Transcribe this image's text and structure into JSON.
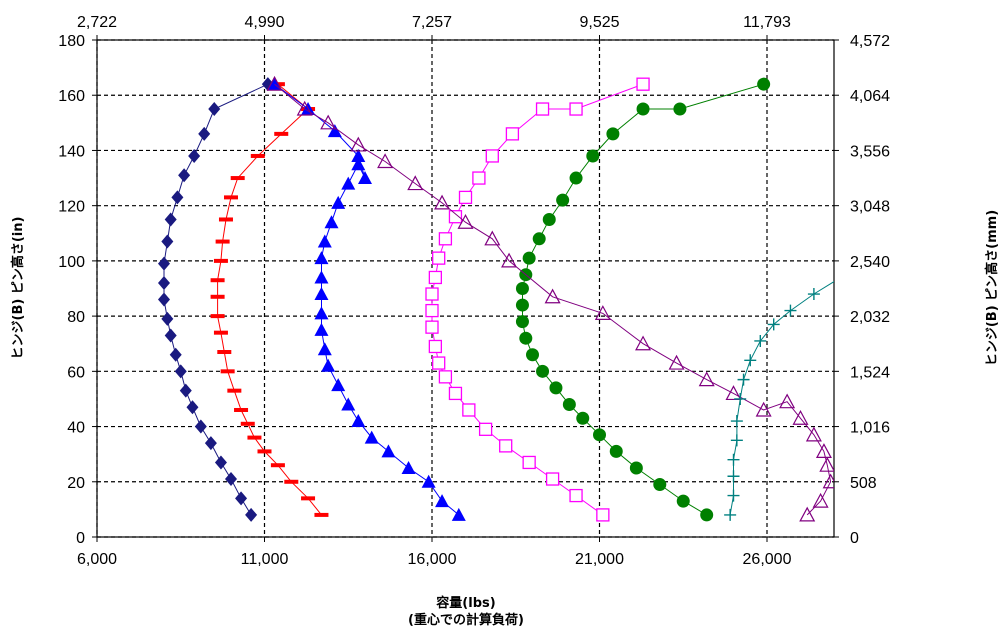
{
  "chart_data": {
    "type": "line",
    "title": "",
    "xlabel": "容量(lbs)",
    "xlabel_sub": "(重心での計算負荷)",
    "ylabel": "ヒンジ(B) ピン高さ(in)",
    "ylabel_right": "ヒンジ(B) ピン高さ(mm)",
    "xlim": [
      6000,
      28000
    ],
    "ylim": [
      0,
      180
    ],
    "grid": true,
    "x_ticks_bottom": [
      "6,000",
      "11,000",
      "16,000",
      "21,000",
      "26,000"
    ],
    "x_ticks_top": [
      "2,722",
      "4,990",
      "7,257",
      "9,525",
      "11,793"
    ],
    "y_ticks_left": [
      "0",
      "20",
      "40",
      "60",
      "80",
      "100",
      "120",
      "140",
      "160",
      "180"
    ],
    "y_ticks_right": [
      "0",
      "508",
      "1,016",
      "1,524",
      "2,032",
      "2,540",
      "3,048",
      "3,556",
      "4,064",
      "4,572"
    ],
    "series": [
      {
        "marker": "diamond",
        "color": "#1a1a80",
        "points": [
          [
            10600,
            8
          ],
          [
            10300,
            14
          ],
          [
            10000,
            21
          ],
          [
            9700,
            27
          ],
          [
            9400,
            34
          ],
          [
            9100,
            40
          ],
          [
            8850,
            47
          ],
          [
            8650,
            53
          ],
          [
            8500,
            60
          ],
          [
            8350,
            66
          ],
          [
            8200,
            73
          ],
          [
            8100,
            79
          ],
          [
            8000,
            86
          ],
          [
            8000,
            92
          ],
          [
            8000,
            99
          ],
          [
            8100,
            107
          ],
          [
            8200,
            115
          ],
          [
            8400,
            123
          ],
          [
            8600,
            131
          ],
          [
            8900,
            138
          ],
          [
            9200,
            146
          ],
          [
            9500,
            155
          ],
          [
            11100,
            164
          ]
        ]
      },
      {
        "marker": "dash",
        "color": "#ff0000",
        "points": [
          [
            12700,
            8
          ],
          [
            12300,
            14
          ],
          [
            11800,
            20
          ],
          [
            11400,
            26
          ],
          [
            11000,
            31
          ],
          [
            10700,
            36
          ],
          [
            10500,
            41
          ],
          [
            10300,
            46
          ],
          [
            10100,
            53
          ],
          [
            9900,
            60
          ],
          [
            9800,
            67
          ],
          [
            9700,
            74
          ],
          [
            9600,
            80
          ],
          [
            9600,
            87
          ],
          [
            9600,
            93
          ],
          [
            9700,
            100
          ],
          [
            9750,
            107
          ],
          [
            9850,
            115
          ],
          [
            10000,
            123
          ],
          [
            10200,
            130
          ],
          [
            10800,
            138
          ],
          [
            11500,
            146
          ],
          [
            12300,
            155
          ],
          [
            11400,
            164
          ]
        ]
      },
      {
        "marker": "triangle",
        "color": "#0000ff",
        "points": [
          [
            16800,
            8
          ],
          [
            16300,
            13
          ],
          [
            15900,
            20
          ],
          [
            15300,
            25
          ],
          [
            14700,
            31
          ],
          [
            14200,
            36
          ],
          [
            13800,
            42
          ],
          [
            13500,
            48
          ],
          [
            13200,
            55
          ],
          [
            12900,
            62
          ],
          [
            12800,
            68
          ],
          [
            12700,
            75
          ],
          [
            12700,
            81
          ],
          [
            12700,
            88
          ],
          [
            12700,
            94
          ],
          [
            12700,
            101
          ],
          [
            12800,
            107
          ],
          [
            13000,
            114
          ],
          [
            13200,
            121
          ],
          [
            13500,
            128
          ],
          [
            13800,
            135
          ],
          [
            14000,
            130
          ],
          [
            13800,
            138
          ],
          [
            13100,
            147
          ],
          [
            12300,
            155
          ],
          [
            11300,
            164
          ]
        ]
      },
      {
        "marker": "open-square",
        "color": "#ff00ff",
        "points": [
          [
            21100,
            8
          ],
          [
            20300,
            15
          ],
          [
            19600,
            21
          ],
          [
            18900,
            27
          ],
          [
            18200,
            33
          ],
          [
            17600,
            39
          ],
          [
            17100,
            46
          ],
          [
            16700,
            52
          ],
          [
            16400,
            58
          ],
          [
            16200,
            63
          ],
          [
            16100,
            69
          ],
          [
            16000,
            76
          ],
          [
            16000,
            82
          ],
          [
            16000,
            88
          ],
          [
            16100,
            94
          ],
          [
            16200,
            101
          ],
          [
            16400,
            108
          ],
          [
            16700,
            116
          ],
          [
            17000,
            123
          ],
          [
            17400,
            130
          ],
          [
            17800,
            138
          ],
          [
            18400,
            146
          ],
          [
            19300,
            155
          ],
          [
            20300,
            155
          ],
          [
            22300,
            164
          ]
        ]
      },
      {
        "marker": "circle",
        "color": "#008000",
        "points": [
          [
            24200,
            8
          ],
          [
            23500,
            13
          ],
          [
            22800,
            19
          ],
          [
            22100,
            25
          ],
          [
            21500,
            31
          ],
          [
            21000,
            37
          ],
          [
            20500,
            43
          ],
          [
            20100,
            48
          ],
          [
            19700,
            54
          ],
          [
            19300,
            60
          ],
          [
            19000,
            66
          ],
          [
            18800,
            72
          ],
          [
            18700,
            78
          ],
          [
            18700,
            84
          ],
          [
            18700,
            90
          ],
          [
            18800,
            95
          ],
          [
            18900,
            101
          ],
          [
            19200,
            108
          ],
          [
            19500,
            115
          ],
          [
            19900,
            122
          ],
          [
            20300,
            130
          ],
          [
            20800,
            138
          ],
          [
            21400,
            146
          ],
          [
            22300,
            155
          ],
          [
            23400,
            155
          ],
          [
            25900,
            164
          ]
        ]
      },
      {
        "marker": "open-triangle",
        "color": "#800080",
        "points": [
          [
            27200,
            8
          ],
          [
            27600,
            13
          ],
          [
            27900,
            20
          ],
          [
            27800,
            26
          ],
          [
            27700,
            31
          ],
          [
            27400,
            37
          ],
          [
            27000,
            43
          ],
          [
            26600,
            49
          ],
          [
            25900,
            46
          ],
          [
            25000,
            52
          ],
          [
            24200,
            57
          ],
          [
            23300,
            63
          ],
          [
            22300,
            70
          ],
          [
            21100,
            81
          ],
          [
            19600,
            87
          ],
          [
            18300,
            100
          ],
          [
            17800,
            108
          ],
          [
            17000,
            114
          ],
          [
            16300,
            121
          ],
          [
            15500,
            128
          ],
          [
            14600,
            136
          ],
          [
            13800,
            142
          ],
          [
            12900,
            150
          ],
          [
            12200,
            155
          ],
          [
            11300,
            164
          ]
        ]
      },
      {
        "marker": "plus",
        "color": "#008080",
        "points": [
          [
            24900,
            8
          ],
          [
            25000,
            15
          ],
          [
            25000,
            22
          ],
          [
            25000,
            28
          ],
          [
            25100,
            35
          ],
          [
            25100,
            42
          ],
          [
            25200,
            50
          ],
          [
            25300,
            57
          ],
          [
            25500,
            64
          ],
          [
            25800,
            71
          ],
          [
            26200,
            77
          ],
          [
            26700,
            82
          ],
          [
            27400,
            88
          ],
          [
            28200,
            94
          ]
        ]
      }
    ]
  }
}
